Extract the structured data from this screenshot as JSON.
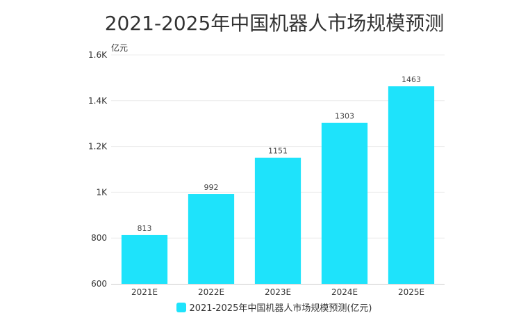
{
  "chart_data": {
    "type": "bar",
    "title": "2021-2025年中国机器人市场规模预测",
    "ylabel": "亿元",
    "categories": [
      "2021E",
      "2022E",
      "2023E",
      "2024E",
      "2025E"
    ],
    "series": [
      {
        "name": "2021-2025年中国机器人市场规模预测(亿元)",
        "values": [
          813,
          992,
          1151,
          1303,
          1463
        ]
      }
    ],
    "ylim": [
      600,
      1600
    ],
    "yticks": [
      600,
      800,
      1000,
      1200,
      1400,
      1600
    ],
    "ytick_labels": [
      "600",
      "800",
      "1K",
      "1.2K",
      "1.4K",
      "1.6K"
    ],
    "bar_color": "#1ee3fb",
    "grid": true,
    "legend_position": "bottom"
  }
}
